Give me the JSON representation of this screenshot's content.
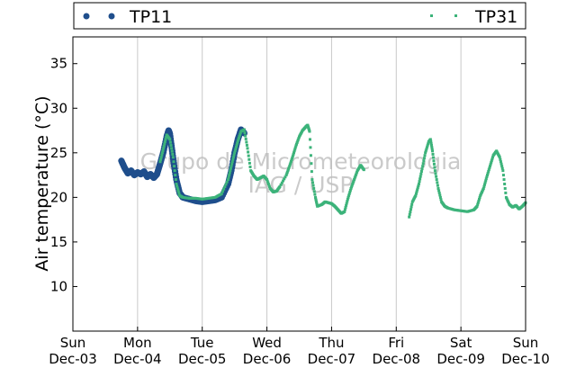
{
  "chart_data": {
    "type": "scatter",
    "ylabel": "Air temperature (°C)",
    "xlabel": "",
    "ylim": [
      5,
      38
    ],
    "xlim": [
      0,
      7
    ],
    "yticks": [
      "10",
      "15",
      "20",
      "25",
      "30",
      "35"
    ],
    "x_ticks": [
      {
        "day": "Sun",
        "date": "Dec-03",
        "x": 0
      },
      {
        "day": "Mon",
        "date": "Dec-04",
        "x": 1
      },
      {
        "day": "Tue",
        "date": "Dec-05",
        "x": 2
      },
      {
        "day": "Wed",
        "date": "Dec-06",
        "x": 3
      },
      {
        "day": "Thu",
        "date": "Dec-07",
        "x": 4
      },
      {
        "day": "Fri",
        "date": "Dec-08",
        "x": 5
      },
      {
        "day": "Sat",
        "date": "Dec-09",
        "x": 6
      },
      {
        "day": "Sun",
        "date": "Dec-10",
        "x": 7
      }
    ],
    "grid": "vertical",
    "legend_position": "top",
    "watermark": [
      "Grupo de Micrometeorologia",
      "IAG / USP"
    ],
    "series": [
      {
        "name": "TP11",
        "color": "#1f4e8c",
        "marker": "circle",
        "points": [
          [
            0.75,
            24.1
          ],
          [
            0.8,
            23.3
          ],
          [
            0.85,
            22.7
          ],
          [
            0.9,
            23.0
          ],
          [
            0.95,
            22.5
          ],
          [
            1.0,
            22.8
          ],
          [
            1.05,
            22.6
          ],
          [
            1.1,
            22.9
          ],
          [
            1.15,
            22.3
          ],
          [
            1.2,
            22.6
          ],
          [
            1.25,
            22.2
          ],
          [
            1.3,
            22.6
          ],
          [
            1.35,
            23.8
          ],
          [
            1.4,
            25.1
          ],
          [
            1.45,
            26.8
          ],
          [
            1.48,
            27.5
          ],
          [
            1.5,
            27.1
          ],
          [
            1.53,
            25.5
          ],
          [
            1.56,
            23.8
          ],
          [
            1.6,
            22.0
          ],
          [
            1.65,
            20.5
          ],
          [
            1.7,
            20.0
          ],
          [
            1.8,
            19.8
          ],
          [
            1.9,
            19.6
          ],
          [
            2.0,
            19.5
          ],
          [
            2.1,
            19.6
          ],
          [
            2.2,
            19.7
          ],
          [
            2.3,
            20.0
          ],
          [
            2.4,
            21.5
          ],
          [
            2.45,
            23.0
          ],
          [
            2.5,
            25.0
          ],
          [
            2.55,
            26.5
          ],
          [
            2.6,
            27.6
          ],
          [
            2.65,
            27.2
          ]
        ]
      },
      {
        "name": "TP31",
        "color": "#3cb37a",
        "marker": "square",
        "points": [
          [
            1.35,
            24.0
          ],
          [
            1.4,
            25.5
          ],
          [
            1.45,
            27.0
          ],
          [
            1.5,
            26.5
          ],
          [
            1.55,
            24.5
          ],
          [
            1.6,
            21.5
          ],
          [
            1.65,
            20.2
          ],
          [
            1.7,
            20.0
          ],
          [
            1.8,
            19.9
          ],
          [
            1.9,
            19.9
          ],
          [
            2.0,
            19.8
          ],
          [
            2.1,
            19.9
          ],
          [
            2.2,
            20.0
          ],
          [
            2.3,
            20.4
          ],
          [
            2.4,
            22.0
          ],
          [
            2.45,
            23.5
          ],
          [
            2.5,
            25.0
          ],
          [
            2.55,
            26.3
          ],
          [
            2.6,
            27.4
          ],
          [
            2.65,
            27.6
          ],
          [
            2.7,
            25.5
          ],
          [
            2.75,
            23.0
          ],
          [
            2.8,
            22.4
          ],
          [
            2.85,
            22.0
          ],
          [
            2.9,
            22.2
          ],
          [
            2.95,
            22.4
          ],
          [
            3.0,
            22.0
          ],
          [
            3.05,
            21.0
          ],
          [
            3.1,
            20.6
          ],
          [
            3.15,
            20.7
          ],
          [
            3.2,
            21.2
          ],
          [
            3.3,
            22.5
          ],
          [
            3.35,
            23.5
          ],
          [
            3.4,
            24.6
          ],
          [
            3.45,
            25.8
          ],
          [
            3.5,
            26.8
          ],
          [
            3.55,
            27.5
          ],
          [
            3.6,
            27.9
          ],
          [
            3.63,
            28.1
          ],
          [
            3.66,
            27.4
          ],
          [
            3.7,
            22.0
          ],
          [
            3.75,
            20.0
          ],
          [
            3.78,
            19.0
          ],
          [
            3.85,
            19.2
          ],
          [
            3.9,
            19.5
          ],
          [
            3.95,
            19.4
          ],
          [
            4.0,
            19.3
          ],
          [
            4.05,
            19.0
          ],
          [
            4.1,
            18.6
          ],
          [
            4.15,
            18.2
          ],
          [
            4.2,
            18.4
          ],
          [
            4.25,
            19.8
          ],
          [
            4.3,
            21.0
          ],
          [
            4.35,
            22.0
          ],
          [
            4.4,
            23.0
          ],
          [
            4.45,
            23.6
          ],
          [
            4.5,
            23.1
          ],
          [
            5.2,
            17.8
          ],
          [
            5.25,
            19.5
          ],
          [
            5.3,
            20.2
          ],
          [
            5.35,
            21.5
          ],
          [
            5.4,
            23.2
          ],
          [
            5.45,
            25.0
          ],
          [
            5.5,
            26.2
          ],
          [
            5.53,
            26.5
          ],
          [
            5.56,
            25.2
          ],
          [
            5.6,
            23.0
          ],
          [
            5.65,
            21.0
          ],
          [
            5.7,
            19.5
          ],
          [
            5.75,
            19.0
          ],
          [
            5.8,
            18.8
          ],
          [
            5.9,
            18.6
          ],
          [
            6.0,
            18.5
          ],
          [
            6.1,
            18.4
          ],
          [
            6.2,
            18.6
          ],
          [
            6.25,
            19.0
          ],
          [
            6.3,
            20.2
          ],
          [
            6.35,
            21.0
          ],
          [
            6.4,
            22.3
          ],
          [
            6.45,
            23.5
          ],
          [
            6.5,
            24.7
          ],
          [
            6.55,
            25.2
          ],
          [
            6.6,
            24.5
          ],
          [
            6.65,
            23.0
          ],
          [
            6.7,
            20.0
          ],
          [
            6.75,
            19.2
          ],
          [
            6.8,
            18.9
          ],
          [
            6.85,
            19.1
          ],
          [
            6.9,
            18.7
          ],
          [
            6.95,
            19.0
          ],
          [
            7.0,
            19.4
          ]
        ]
      }
    ]
  }
}
